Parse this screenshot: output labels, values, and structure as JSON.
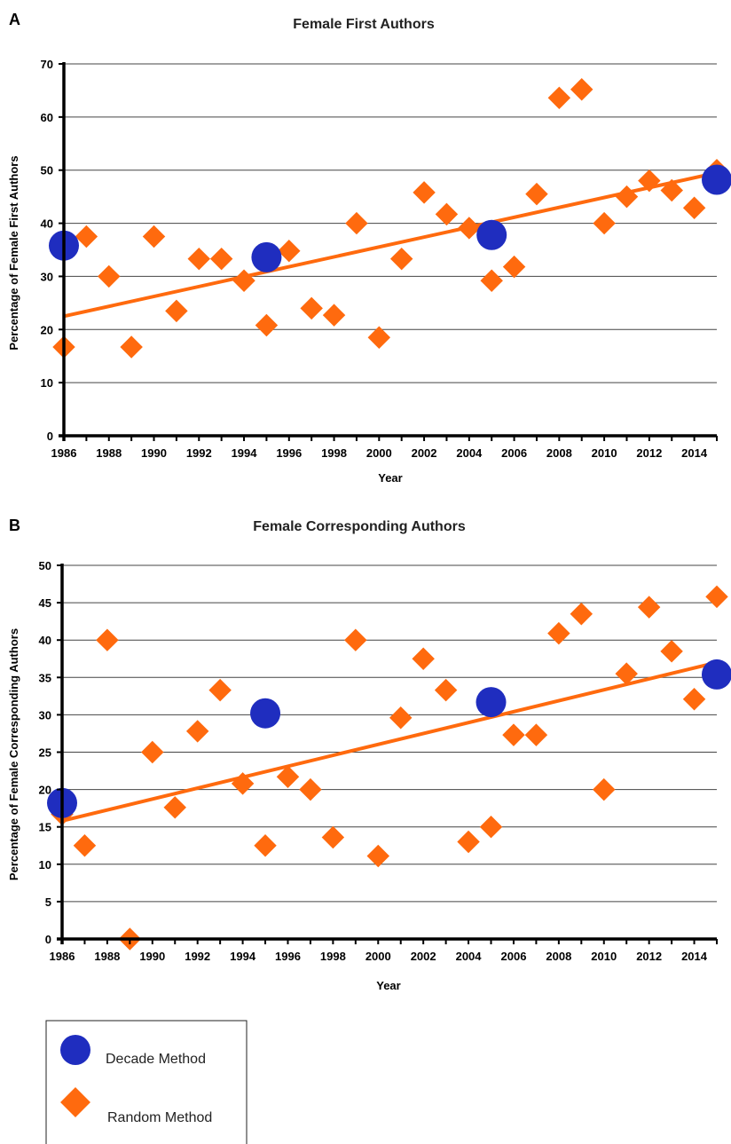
{
  "colors": {
    "decade": "#1f2dbf",
    "random": "#ff6a0e",
    "trend": "#ff6a0e",
    "grid": "#444444"
  },
  "legend": {
    "decade_label": "Decade Method",
    "random_label": "Random Method"
  },
  "chart_data": [
    {
      "panel": "A",
      "type": "scatter",
      "title": "Female First Authors",
      "xlabel": "Year",
      "ylabel": "Percentage of Female First Authors",
      "xlim": [
        1986,
        2015
      ],
      "ylim": [
        0,
        70
      ],
      "yticks": [
        0,
        10,
        20,
        30,
        40,
        50,
        60,
        70
      ],
      "xticks": [
        1986,
        1988,
        1990,
        1992,
        1994,
        1996,
        1998,
        2000,
        2002,
        2004,
        2006,
        2008,
        2010,
        2012,
        2014
      ],
      "grid": true,
      "series": [
        {
          "name": "Decade Method",
          "marker": "circle",
          "x": [
            1986,
            1995,
            2005,
            2015
          ],
          "y": [
            35.8,
            33.6,
            37.8,
            48.2
          ]
        },
        {
          "name": "Random Method",
          "marker": "diamond",
          "x": [
            1986,
            1987,
            1988,
            1989,
            1990,
            1991,
            1992,
            1993,
            1994,
            1995,
            1996,
            1997,
            1998,
            1999,
            2000,
            2001,
            2002,
            2003,
            2004,
            2005,
            2006,
            2007,
            2008,
            2009,
            2010,
            2011,
            2012,
            2013,
            2014,
            2015
          ],
          "y": [
            16.7,
            37.5,
            30.0,
            16.7,
            37.5,
            23.5,
            33.3,
            33.3,
            29.2,
            20.8,
            34.8,
            24.0,
            22.7,
            40.0,
            18.5,
            33.3,
            45.8,
            41.7,
            39.1,
            29.2,
            31.8,
            45.5,
            63.6,
            65.2,
            40.0,
            45.0,
            48.0,
            46.2,
            42.9,
            50.0
          ]
        }
      ],
      "trendline": {
        "x": [
          1986,
          2015
        ],
        "y": [
          22.5,
          49.5
        ]
      }
    },
    {
      "panel": "B",
      "type": "scatter",
      "title": "Female Corresponding Authors",
      "xlabel": "Year",
      "ylabel": "Percentage of Female Corresponding Authors",
      "xlim": [
        1986,
        2015
      ],
      "ylim": [
        0,
        50
      ],
      "yticks": [
        0,
        5,
        10,
        15,
        20,
        25,
        30,
        35,
        40,
        45,
        50
      ],
      "xticks": [
        1986,
        1988,
        1990,
        1992,
        1994,
        1996,
        1998,
        2000,
        2002,
        2004,
        2006,
        2008,
        2010,
        2012,
        2014
      ],
      "grid": true,
      "series": [
        {
          "name": "Decade Method",
          "marker": "circle",
          "x": [
            1986,
            1995,
            2005,
            2015
          ],
          "y": [
            18.2,
            30.2,
            31.7,
            35.4
          ]
        },
        {
          "name": "Random Method",
          "marker": "diamond",
          "x": [
            1986,
            1987,
            1988,
            1989,
            1990,
            1991,
            1992,
            1993,
            1994,
            1995,
            1996,
            1997,
            1998,
            1999,
            2000,
            2001,
            2002,
            2003,
            2004,
            2005,
            2006,
            2007,
            2008,
            2009,
            2010,
            2011,
            2012,
            2013,
            2014,
            2015
          ],
          "y": [
            16.7,
            12.5,
            40.0,
            0.0,
            25.0,
            17.6,
            27.8,
            33.3,
            20.8,
            12.5,
            21.7,
            20.0,
            13.6,
            40.0,
            11.1,
            29.6,
            37.5,
            33.3,
            13.0,
            15.0,
            27.3,
            27.3,
            40.9,
            43.5,
            20.0,
            35.5,
            44.4,
            38.5,
            32.1,
            45.8
          ]
        }
      ],
      "trendline": {
        "x": [
          1986,
          2015
        ],
        "y": [
          15.8,
          37.0
        ]
      }
    }
  ]
}
